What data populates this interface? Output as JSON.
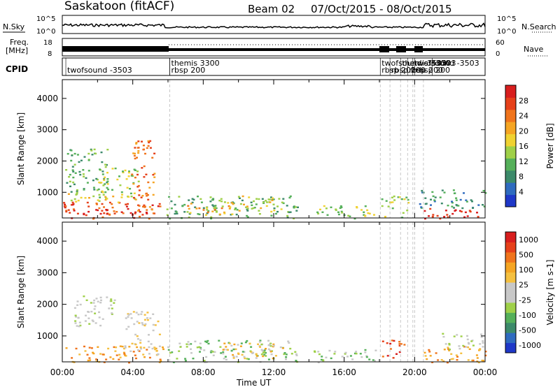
{
  "header": {
    "station": "Saskatoon (fitACF)",
    "beam": "Beam 02",
    "dates": "07/Oct/2015 - 08/Oct/2015"
  },
  "noise_panel": {
    "left_label": "N.Sky",
    "right_label": "N.Search",
    "left_ticks": [
      "10^5",
      "10^0"
    ],
    "right_ticks": [
      "10^5",
      "10^0"
    ]
  },
  "freq_panel": {
    "label_line1": "Freq.",
    "label_line2": "[MHz]",
    "left_ticks": [
      "18",
      "8"
    ],
    "right_ticks": [
      "60",
      "0"
    ],
    "right_label": "Nave"
  },
  "cpid": {
    "label": "CPID",
    "entries": [
      {
        "text": "twofsound -3503",
        "hour": 0.2,
        "row": 1
      },
      {
        "text": "themis 3300",
        "hour": 6.1,
        "row": 0
      },
      {
        "text": "rbsp 200",
        "hour": 6.1,
        "row": 1
      },
      {
        "text": "twofsound -3503",
        "hour": 18.05,
        "row": 0
      },
      {
        "text": "rbsp 200",
        "hour": 18.05,
        "row": 1
      },
      {
        "text": "rbsp 200",
        "hour": 18.6,
        "row": 1
      },
      {
        "text": "themis 3300",
        "hour": 19.2,
        "row": 0
      },
      {
        "text": "rbsp 200",
        "hour": 19.6,
        "row": 1
      },
      {
        "text": "twofsound -3503",
        "hour": 19.9,
        "row": 0
      },
      {
        "text": "rbsp 200",
        "hour": 20.0,
        "row": 1
      },
      {
        "text": "-3503",
        "hour": 21.0,
        "row": 0
      }
    ]
  },
  "chart_data": [
    {
      "type": "heatmap",
      "title": "Power",
      "ylabel": "Slant Range [km]",
      "ylim": [
        180,
        4600
      ],
      "yticks": [
        1000,
        2000,
        3000,
        4000
      ],
      "xlim": [
        0,
        24
      ],
      "colorbar": {
        "label": "Power [dB]",
        "ticks": [
          "4",
          "8",
          "12",
          "16",
          "20",
          "24",
          "28"
        ],
        "colors": [
          "#1f38c8",
          "#2f6bbf",
          "#3c8a6a",
          "#55b05a",
          "#9fd048",
          "#f0d232",
          "#f5a523",
          "#f0741c",
          "#e6401a",
          "#d81e1e"
        ]
      },
      "regions": [
        {
          "h0": 0.0,
          "h1": 5.8,
          "r0": 180,
          "r1": 700,
          "level": 8
        },
        {
          "h0": 1.0,
          "h1": 4.8,
          "r0": 300,
          "r1": 500,
          "level": 9
        },
        {
          "h0": 0.3,
          "h1": 3.2,
          "r0": 700,
          "r1": 1000,
          "level": 5
        },
        {
          "h0": 0.1,
          "h1": 2.6,
          "r0": 1000,
          "r1": 2400,
          "level": 3
        },
        {
          "h0": 2.0,
          "h1": 4.3,
          "r0": 800,
          "r1": 1800,
          "level": 4
        },
        {
          "h0": 3.9,
          "h1": 5.2,
          "r0": 400,
          "r1": 2700,
          "level": 7
        },
        {
          "h0": 5.9,
          "h1": 13.4,
          "r0": 180,
          "r1": 900,
          "level": 3
        },
        {
          "h0": 7.0,
          "h1": 9.8,
          "r0": 300,
          "r1": 700,
          "level": 6
        },
        {
          "h0": 10.0,
          "h1": 12.4,
          "r0": 400,
          "r1": 900,
          "level": 5
        },
        {
          "h0": 14.0,
          "h1": 17.8,
          "r0": 180,
          "r1": 600,
          "level": 4
        },
        {
          "h0": 18.1,
          "h1": 19.6,
          "r0": 180,
          "r1": 900,
          "level": 4
        },
        {
          "h0": 20.3,
          "h1": 24.0,
          "r0": 180,
          "r1": 500,
          "level": 9
        },
        {
          "h0": 20.2,
          "h1": 24.0,
          "r0": 500,
          "r1": 1100,
          "level": 2
        }
      ]
    },
    {
      "type": "heatmap",
      "title": "Velocity",
      "ylabel": "Slant Range [km]",
      "ylim": [
        180,
        4600
      ],
      "yticks": [
        1000,
        2000,
        3000,
        4000
      ],
      "xlim": [
        0,
        24
      ],
      "colorbar": {
        "label": "Velocity [m s-1]",
        "ticks": [
          "1000",
          "500",
          "100",
          "25",
          "-25",
          "-100",
          "-500",
          "-1000"
        ],
        "colors": [
          "#1f38c8",
          "#2f6bbf",
          "#3c8a6a",
          "#55b05a",
          "#9fd048",
          "#c8c8c8",
          "#c8c8c8",
          "#f5c040",
          "#f5a523",
          "#f0741c",
          "#e6401a",
          "#d81e1e"
        ]
      },
      "regions": [
        {
          "h0": 0.0,
          "h1": 5.8,
          "r0": 180,
          "r1": 700,
          "level": 8
        },
        {
          "h0": 0.5,
          "h1": 3.0,
          "r0": 1300,
          "r1": 2300,
          "level": 5
        },
        {
          "h0": 3.5,
          "h1": 5.5,
          "r0": 400,
          "r1": 1800,
          "level": 6
        },
        {
          "h0": 5.9,
          "h1": 13.4,
          "r0": 180,
          "r1": 900,
          "level": 4
        },
        {
          "h0": 9.0,
          "h1": 12.5,
          "r0": 300,
          "r1": 800,
          "level": 7
        },
        {
          "h0": 14.0,
          "h1": 17.8,
          "r0": 180,
          "r1": 600,
          "level": 4
        },
        {
          "h0": 18.1,
          "h1": 19.4,
          "r0": 300,
          "r1": 900,
          "level": 10
        },
        {
          "h0": 20.3,
          "h1": 24.0,
          "r0": 180,
          "r1": 700,
          "level": 8
        },
        {
          "h0": 21.5,
          "h1": 24.0,
          "r0": 600,
          "r1": 1100,
          "level": 5
        }
      ]
    }
  ],
  "x_axis": {
    "label": "Time UT",
    "ticks": [
      "00:00",
      "04:00",
      "08:00",
      "12:00",
      "16:00",
      "20:00",
      "00:00"
    ]
  }
}
